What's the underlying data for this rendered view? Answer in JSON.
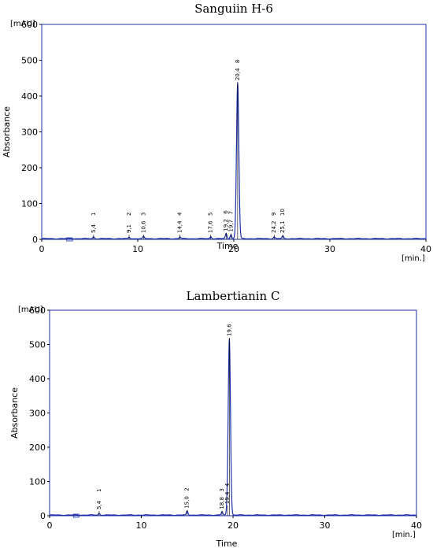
{
  "chart_data": [
    {
      "type": "line",
      "title": "Sanguiin H-6",
      "xlabel": "Time",
      "ylabel": "Absorbance",
      "x_unit": "[min.]",
      "y_unit": "[mAU]",
      "xlim": [
        0,
        40
      ],
      "ylim": [
        0,
        600
      ],
      "x_ticks": [
        "0",
        "10",
        "20",
        "30",
        "40"
      ],
      "y_ticks": [
        "0",
        "100",
        "200",
        "300",
        "400",
        "500",
        "600"
      ],
      "peaks": [
        {
          "time": 5.4,
          "height": 5,
          "label": "5,4",
          "number": "1"
        },
        {
          "time": 9.1,
          "height": 4,
          "label": "9,1",
          "number": "2"
        },
        {
          "time": 10.6,
          "height": 6,
          "label": "10,6",
          "number": "3"
        },
        {
          "time": 14.4,
          "height": 5,
          "label": "14,4",
          "number": "4"
        },
        {
          "time": 17.6,
          "height": 6,
          "label": "17,6",
          "number": "5"
        },
        {
          "time": 19.2,
          "height": 14,
          "label": "19,2",
          "number": "6"
        },
        {
          "time": 19.7,
          "height": 12,
          "label": "19,7",
          "number": "7"
        },
        {
          "time": 20.4,
          "height": 435,
          "label": "20,4",
          "number": "8"
        },
        {
          "time": 24.2,
          "height": 5,
          "label": "24,2",
          "number": "9"
        },
        {
          "time": 25.1,
          "height": 7,
          "label": "25,1",
          "number": "10"
        }
      ]
    },
    {
      "type": "line",
      "title": "Lambertianin C",
      "xlabel": "Time",
      "ylabel": "Absorbance",
      "x_unit": "[min.]",
      "y_unit": "[mAU]",
      "xlim": [
        0,
        40
      ],
      "ylim": [
        0,
        600
      ],
      "x_ticks": [
        "0",
        "10",
        "20",
        "30",
        "40"
      ],
      "y_ticks": [
        "0",
        "100",
        "200",
        "300",
        "400",
        "500",
        "600"
      ],
      "peaks": [
        {
          "time": 5.4,
          "height": 5,
          "label": "5,4",
          "number": "1"
        },
        {
          "time": 15.0,
          "height": 12,
          "label": "15,0",
          "number": "2"
        },
        {
          "time": 18.8,
          "height": 10,
          "label": "18,8",
          "number": "3"
        },
        {
          "time": 19.4,
          "height": 25,
          "label": "19,4",
          "number": "4"
        },
        {
          "time": 19.6,
          "height": 515,
          "label": "19,6",
          "number": ""
        }
      ]
    }
  ]
}
